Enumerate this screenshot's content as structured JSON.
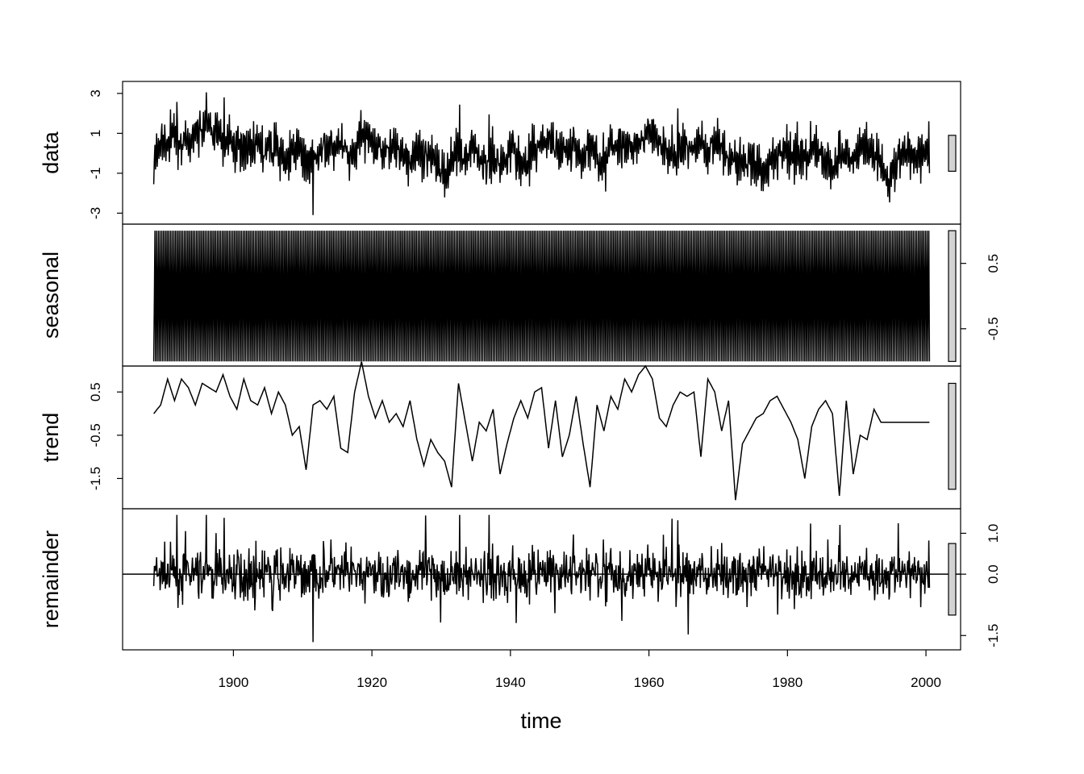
{
  "chart_data": {
    "type": "line",
    "title": "",
    "xlabel": "time",
    "xlim": [
      1884,
      2005
    ],
    "x_ticks": [
      1900,
      1920,
      1940,
      1960,
      1980,
      2000
    ],
    "start_year": 1888.5,
    "end_year": 2000.5,
    "frequency": 12,
    "panels": [
      {
        "name": "data",
        "ylabel": "data",
        "axis_side": "left",
        "ylim": [
          -3.55,
          3.6
        ],
        "y_ticks": [
          3,
          1,
          -1,
          -3
        ],
        "y_tick_labels": [
          "3",
          "1",
          "-1",
          "-3"
        ],
        "range_bar": [
          -0.9,
          0.9
        ],
        "annual_values": [
          -0.6,
          0.6,
          0.4,
          1.0,
          0.5,
          0.3,
          1.0,
          1.2,
          1.4,
          0.9,
          0.5,
          0.8,
          0.2,
          0.5,
          0.3,
          0.7,
          -0.2,
          0.6,
          0.1,
          -0.4,
          -0.1,
          0.2,
          -0.3,
          -0.5,
          0.3,
          0.2,
          0.1,
          0.5,
          -0.3,
          -0.2,
          1.2,
          0.7,
          0.2,
          0.3,
          0.4,
          0.1,
          -0.1,
          -0.3,
          0.2,
          -0.6,
          -0.2,
          -0.4,
          -1.0,
          -0.4,
          0.2,
          -0.4,
          0.5,
          -0.3,
          -0.6,
          -0.1,
          -0.5,
          -0.1,
          0.4,
          -0.5,
          -0.3,
          0.2,
          0.4,
          0.6,
          0.3,
          0.2,
          0.1,
          0.2,
          -0.4,
          0.5,
          -0.3,
          -0.6,
          0.3,
          0.5,
          0.7,
          0.3,
          0.4,
          0.8,
          1.0,
          0.6,
          -0.1,
          -0.2,
          0.2,
          0.4,
          0.3,
          0.5,
          0.0,
          0.6,
          0.2,
          -0.2,
          -0.4,
          -0.4,
          -0.3,
          -0.6,
          -1.3,
          -0.5,
          -0.2,
          0.3,
          -0.1,
          0.2,
          -0.2,
          0.2,
          0.1,
          -0.3,
          -0.8,
          -0.3,
          0.0,
          -0.3,
          0.2,
          0.2,
          0.0,
          -0.4,
          -1.4,
          -0.8,
          -0.1,
          0.1,
          -0.4,
          0.2,
          0.0
        ]
      },
      {
        "name": "seasonal",
        "ylabel": "seasonal",
        "axis_side": "right",
        "ylim": [
          -1.07,
          1.1
        ],
        "y_ticks": [
          0.5,
          -0.5
        ],
        "y_tick_labels": [
          "0.5",
          "-0.5"
        ],
        "range_bar": [
          -1.0,
          1.0
        ],
        "monthly_pattern": [
          -1.0,
          0.0,
          1.0,
          -1.0,
          0.0,
          1.0,
          -1.0,
          0.0,
          1.0,
          -1.0,
          0.0,
          1.0
        ]
      },
      {
        "name": "trend",
        "ylabel": "trend",
        "axis_side": "left",
        "ylim": [
          -2.2,
          1.1
        ],
        "y_ticks": [
          0.5,
          -0.5,
          -1.5
        ],
        "y_tick_labels": [
          "0.5",
          "-0.5",
          "-1.5"
        ],
        "range_bar": [
          -1.75,
          0.7
        ],
        "annual_values": [
          0.0,
          0.2,
          0.8,
          0.3,
          0.8,
          0.6,
          0.2,
          0.7,
          0.6,
          0.5,
          0.9,
          0.4,
          0.1,
          0.8,
          0.3,
          0.2,
          0.6,
          0.0,
          0.5,
          0.2,
          -0.5,
          -0.3,
          -1.3,
          0.2,
          0.3,
          0.1,
          0.4,
          -0.8,
          -0.9,
          0.5,
          1.2,
          0.4,
          -0.1,
          0.3,
          -0.2,
          0.0,
          -0.3,
          0.3,
          -0.6,
          -1.2,
          -0.6,
          -0.9,
          -1.1,
          -1.7,
          0.7,
          -0.2,
          -1.1,
          -0.2,
          -0.4,
          0.1,
          -1.4,
          -0.7,
          -0.1,
          0.3,
          -0.1,
          0.5,
          0.6,
          -0.8,
          0.3,
          -1.0,
          -0.5,
          0.4,
          -0.7,
          -1.7,
          0.2,
          -0.4,
          0.4,
          0.1,
          0.8,
          0.5,
          0.9,
          1.1,
          0.8,
          -0.1,
          -0.3,
          0.2,
          0.5,
          0.4,
          0.5,
          -1.0,
          0.8,
          0.5,
          -0.4,
          0.3,
          -2.0,
          -0.7,
          -0.4,
          -0.1,
          0.0,
          0.3,
          0.4,
          0.1,
          -0.2,
          -0.6,
          -1.5,
          -0.3,
          0.1,
          0.3,
          0.0,
          -1.9,
          0.3,
          -1.4,
          -0.5,
          -0.6,
          0.1,
          -0.2
        ]
      },
      {
        "name": "remainder",
        "ylabel": "remainder",
        "axis_side": "right",
        "ylim": [
          -1.85,
          1.6
        ],
        "y_ticks": [
          1.0,
          0.0,
          -1.5
        ],
        "y_tick_labels": [
          "1.0",
          "0.0",
          "-1.5"
        ],
        "range_bar": [
          -1.0,
          0.75
        ],
        "zero_line": true
      }
    ]
  }
}
